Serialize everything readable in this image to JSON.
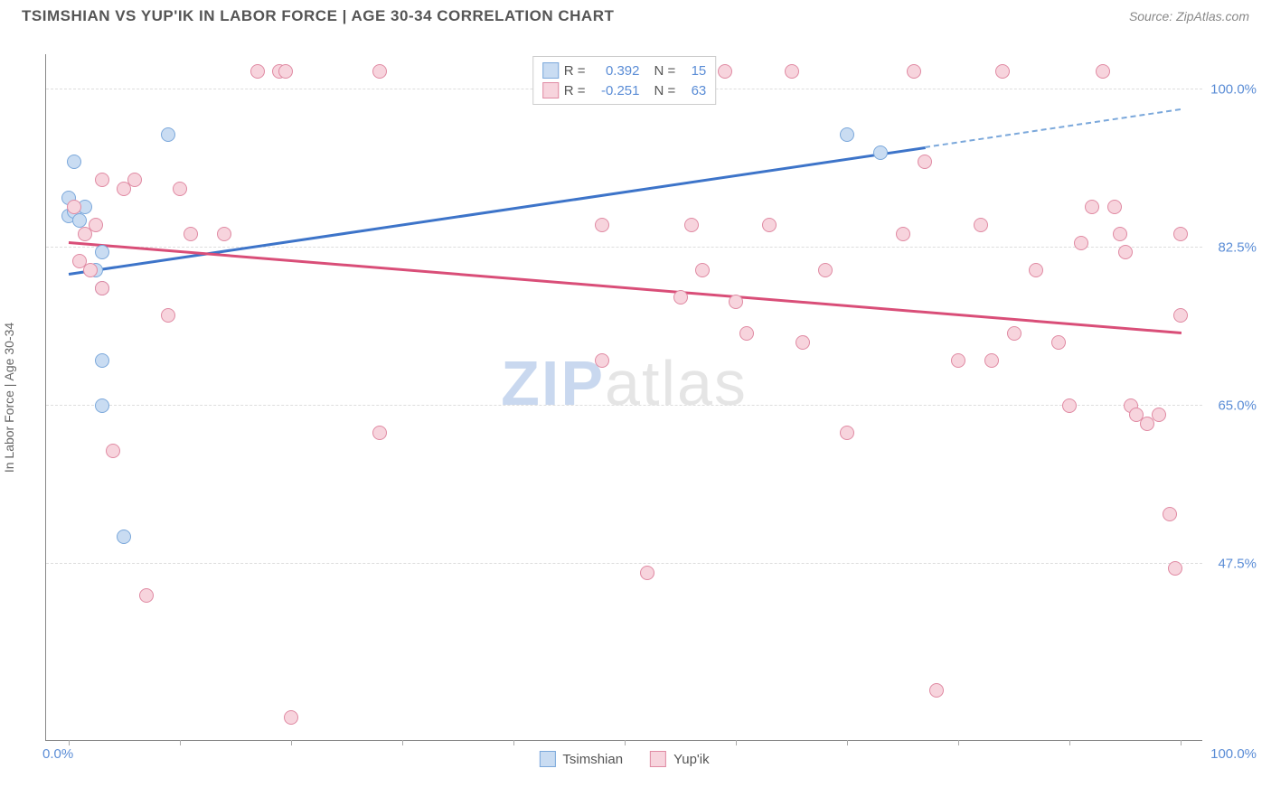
{
  "header": {
    "title": "TSIMSHIAN VS YUP'IK IN LABOR FORCE | AGE 30-34 CORRELATION CHART",
    "source": "Source: ZipAtlas.com"
  },
  "axes": {
    "ylabel": "In Labor Force | Age 30-34",
    "x_min_label": "0.0%",
    "x_max_label": "100.0%",
    "y_ticks": [
      {
        "value": 47.5,
        "label": "47.5%"
      },
      {
        "value": 65.0,
        "label": "65.0%"
      },
      {
        "value": 82.5,
        "label": "82.5%"
      },
      {
        "value": 100.0,
        "label": "100.0%"
      }
    ],
    "x_tick_positions": [
      0,
      10,
      20,
      30,
      40,
      50,
      60,
      70,
      80,
      90,
      100
    ],
    "x_domain": [
      -2,
      102
    ],
    "y_domain": [
      28,
      104
    ]
  },
  "watermark": {
    "zip": "ZIP",
    "rest": "atlas"
  },
  "series": [
    {
      "name": "Tsimshian",
      "color_fill": "#c9dcf2",
      "color_stroke": "#7ba8db",
      "marker_radius": 8,
      "R": "0.392",
      "N": "15",
      "trend": {
        "x1": 0,
        "y1": 79.5,
        "x2": 77,
        "y2": 93.5,
        "color": "#3d74c9"
      },
      "trend_extend": {
        "x1": 77,
        "y1": 93.5,
        "x2": 100,
        "y2": 97.7,
        "color": "#7ba8db"
      },
      "points": [
        {
          "x": 0.0,
          "y": 88.0
        },
        {
          "x": 0.0,
          "y": 86.0
        },
        {
          "x": 0.5,
          "y": 86.5
        },
        {
          "x": 1.0,
          "y": 85.5
        },
        {
          "x": 1.5,
          "y": 87.0
        },
        {
          "x": 3.0,
          "y": 82.0
        },
        {
          "x": 2.5,
          "y": 80.0
        },
        {
          "x": 9.0,
          "y": 95.0
        },
        {
          "x": 0.5,
          "y": 92.0
        },
        {
          "x": 3.0,
          "y": 78.0
        },
        {
          "x": 3.0,
          "y": 70.0
        },
        {
          "x": 3.0,
          "y": 65.0
        },
        {
          "x": 5.0,
          "y": 50.5
        },
        {
          "x": 70.0,
          "y": 95.0
        },
        {
          "x": 73.0,
          "y": 93.0
        }
      ]
    },
    {
      "name": "Yup'ik",
      "color_fill": "#f7d4dd",
      "color_stroke": "#e08aa3",
      "marker_radius": 8,
      "R": "-0.251",
      "N": "63",
      "trend": {
        "x1": 0,
        "y1": 83.0,
        "x2": 100,
        "y2": 73.0,
        "color": "#d94e78"
      },
      "points": [
        {
          "x": 0.5,
          "y": 87.0
        },
        {
          "x": 1.0,
          "y": 81.0
        },
        {
          "x": 1.5,
          "y": 84.0
        },
        {
          "x": 2.0,
          "y": 80.0
        },
        {
          "x": 2.5,
          "y": 85.0
        },
        {
          "x": 3.0,
          "y": 90.0
        },
        {
          "x": 3.0,
          "y": 78.0
        },
        {
          "x": 4.0,
          "y": 60.0
        },
        {
          "x": 5.0,
          "y": 89.0
        },
        {
          "x": 6.0,
          "y": 90.0
        },
        {
          "x": 7.0,
          "y": 44.0
        },
        {
          "x": 9.0,
          "y": 75.0
        },
        {
          "x": 10.0,
          "y": 89.0
        },
        {
          "x": 11.0,
          "y": 84.0
        },
        {
          "x": 14.0,
          "y": 84.0
        },
        {
          "x": 17.0,
          "y": 102.0
        },
        {
          "x": 19.0,
          "y": 102.0
        },
        {
          "x": 19.5,
          "y": 102.0
        },
        {
          "x": 20.0,
          "y": 30.5
        },
        {
          "x": 28.0,
          "y": 102.0
        },
        {
          "x": 28.0,
          "y": 62.0
        },
        {
          "x": 47.0,
          "y": 102.0
        },
        {
          "x": 48.0,
          "y": 70.0
        },
        {
          "x": 48.0,
          "y": 85.0
        },
        {
          "x": 50.0,
          "y": 102.0
        },
        {
          "x": 52.0,
          "y": 46.5
        },
        {
          "x": 55.0,
          "y": 77.0
        },
        {
          "x": 56.0,
          "y": 85.0
        },
        {
          "x": 57.0,
          "y": 80.0
        },
        {
          "x": 59.0,
          "y": 102.0
        },
        {
          "x": 60.0,
          "y": 76.5
        },
        {
          "x": 61.0,
          "y": 73.0
        },
        {
          "x": 63.0,
          "y": 85.0
        },
        {
          "x": 65.0,
          "y": 102.0
        },
        {
          "x": 66.0,
          "y": 72.0
        },
        {
          "x": 68.0,
          "y": 80.0
        },
        {
          "x": 70.0,
          "y": 62.0
        },
        {
          "x": 75.0,
          "y": 84.0
        },
        {
          "x": 76.0,
          "y": 102.0
        },
        {
          "x": 77.0,
          "y": 92.0
        },
        {
          "x": 78.0,
          "y": 33.5
        },
        {
          "x": 80.0,
          "y": 70.0
        },
        {
          "x": 82.0,
          "y": 85.0
        },
        {
          "x": 83.0,
          "y": 70.0
        },
        {
          "x": 84.0,
          "y": 102.0
        },
        {
          "x": 85.0,
          "y": 73.0
        },
        {
          "x": 87.0,
          "y": 80.0
        },
        {
          "x": 89.0,
          "y": 72.0
        },
        {
          "x": 90.0,
          "y": 65.0
        },
        {
          "x": 91.0,
          "y": 83.0
        },
        {
          "x": 92.0,
          "y": 87.0
        },
        {
          "x": 93.0,
          "y": 102.0
        },
        {
          "x": 94.0,
          "y": 87.0
        },
        {
          "x": 94.5,
          "y": 84.0
        },
        {
          "x": 95.0,
          "y": 82.0
        },
        {
          "x": 95.5,
          "y": 65.0
        },
        {
          "x": 96.0,
          "y": 64.0
        },
        {
          "x": 97.0,
          "y": 63.0
        },
        {
          "x": 98.0,
          "y": 64.0
        },
        {
          "x": 99.0,
          "y": 53.0
        },
        {
          "x": 99.5,
          "y": 47.0
        },
        {
          "x": 100.0,
          "y": 75.0
        },
        {
          "x": 100.0,
          "y": 84.0
        }
      ]
    }
  ],
  "legend_bottom": [
    {
      "label": "Tsimshian",
      "swatch": "#c9dcf2",
      "border": "#7ba8db"
    },
    {
      "label": "Yup'ik",
      "swatch": "#f7d4dd",
      "border": "#e08aa3"
    }
  ],
  "legend_top_labels": {
    "R": "R  =",
    "N": "N  ="
  }
}
